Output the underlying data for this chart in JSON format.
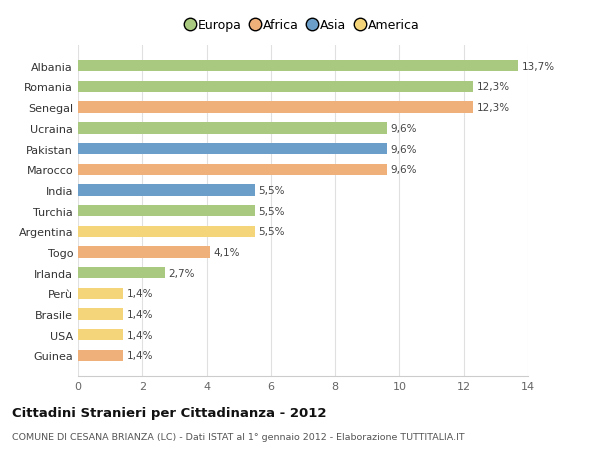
{
  "countries": [
    "Albania",
    "Romania",
    "Senegal",
    "Ucraina",
    "Pakistan",
    "Marocco",
    "India",
    "Turchia",
    "Argentina",
    "Togo",
    "Irlanda",
    "Perù",
    "Brasile",
    "USA",
    "Guinea"
  ],
  "values": [
    13.7,
    12.3,
    12.3,
    9.6,
    9.6,
    9.6,
    5.5,
    5.5,
    5.5,
    4.1,
    2.7,
    1.4,
    1.4,
    1.4,
    1.4
  ],
  "labels": [
    "13,7%",
    "12,3%",
    "12,3%",
    "9,6%",
    "9,6%",
    "9,6%",
    "5,5%",
    "5,5%",
    "5,5%",
    "4,1%",
    "2,7%",
    "1,4%",
    "1,4%",
    "1,4%",
    "1,4%"
  ],
  "continents": [
    "Europa",
    "Europa",
    "Africa",
    "Europa",
    "Asia",
    "Africa",
    "Asia",
    "Europa",
    "America",
    "Africa",
    "Europa",
    "America",
    "America",
    "America",
    "Africa"
  ],
  "continent_colors": {
    "Europa": "#a8c97f",
    "Africa": "#f0b07a",
    "Asia": "#6b9ec8",
    "America": "#f5d57a"
  },
  "legend_order": [
    "Europa",
    "Africa",
    "Asia",
    "America"
  ],
  "title": "Cittadini Stranieri per Cittadinanza - 2012",
  "subtitle": "COMUNE DI CESANA BRIANZA (LC) - Dati ISTAT al 1° gennaio 2012 - Elaborazione TUTTITALIA.IT",
  "xlim": [
    0,
    14
  ],
  "xticks": [
    0,
    2,
    4,
    6,
    8,
    10,
    12,
    14
  ],
  "fig_background": "#ffffff",
  "plot_background": "#ffffff",
  "grid_color": "#e0e0e0",
  "bar_height": 0.55,
  "label_fontsize": 7.5,
  "ytick_fontsize": 8,
  "xtick_fontsize": 8
}
